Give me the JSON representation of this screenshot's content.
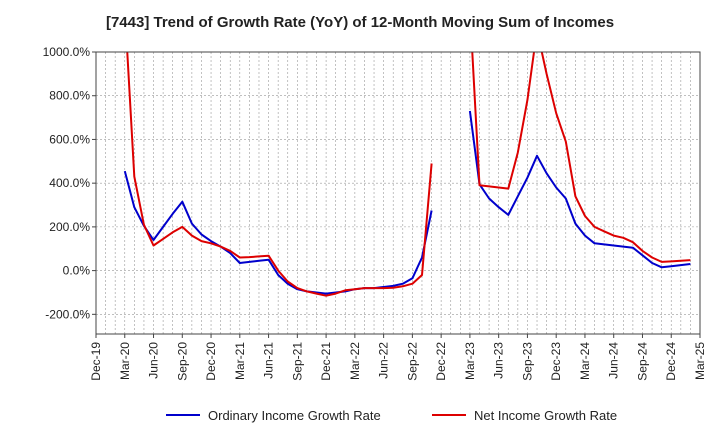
{
  "chart_data": {
    "type": "line",
    "title": "[7443]  Trend of Growth Rate (YoY) of 12-Month Moving Sum of Incomes",
    "xlabel": "",
    "ylabel": "",
    "ylim": [
      -290,
      1000
    ],
    "yticks": [
      -200,
      0,
      200,
      400,
      600,
      800,
      1000
    ],
    "ytick_labels": [
      "-200.0%",
      "0.0%",
      "200.0%",
      "400.0%",
      "600.0%",
      "800.0%",
      "1000.0%"
    ],
    "x_tick_labels": [
      "Dec-19",
      "Mar-20",
      "Jun-20",
      "Sep-20",
      "Dec-20",
      "Mar-21",
      "Jun-21",
      "Sep-21",
      "Dec-21",
      "Mar-22",
      "Jun-22",
      "Sep-22",
      "Dec-22",
      "Mar-23",
      "Jun-23",
      "Sep-23",
      "Dec-23",
      "Mar-24",
      "Jun-24",
      "Sep-24",
      "Dec-24",
      "Mar-25"
    ],
    "x_months": [
      "2019-12",
      "2020-01",
      "2020-02",
      "2020-03",
      "2020-04",
      "2020-05",
      "2020-06",
      "2020-07",
      "2020-08",
      "2020-09",
      "2020-10",
      "2020-11",
      "2020-12",
      "2021-01",
      "2021-02",
      "2021-03",
      "2021-04",
      "2021-05",
      "2021-06",
      "2021-07",
      "2021-08",
      "2021-09",
      "2021-10",
      "2021-11",
      "2021-12",
      "2022-01",
      "2022-02",
      "2022-03",
      "2022-04",
      "2022-05",
      "2022-06",
      "2022-07",
      "2022-08",
      "2022-09",
      "2022-10",
      "2022-11",
      "2022-12",
      "2023-01",
      "2023-02",
      "2023-03",
      "2023-04",
      "2023-05",
      "2023-06",
      "2023-07",
      "2023-08",
      "2023-09",
      "2023-10",
      "2023-11",
      "2023-12",
      "2024-01",
      "2024-02",
      "2024-03",
      "2024-04",
      "2024-05",
      "2024-06",
      "2024-07",
      "2024-08",
      "2024-09",
      "2024-10",
      "2024-11",
      "2024-12",
      "2025-01",
      "2025-02",
      "2025-03"
    ],
    "grid": true,
    "legend_position": "bottom",
    "series": [
      {
        "name": "Ordinary Income Growth Rate",
        "color": "#0000cc",
        "values": [
          null,
          null,
          null,
          455,
          290,
          205,
          140,
          200,
          260,
          315,
          215,
          165,
          135,
          110,
          80,
          35,
          40,
          45,
          50,
          -20,
          -60,
          -85,
          -95,
          -100,
          -105,
          -100,
          -95,
          -85,
          -80,
          -80,
          -75,
          -70,
          -60,
          -35,
          60,
          275,
          null,
          null,
          null,
          730,
          395,
          330,
          290,
          255,
          340,
          425,
          525,
          445,
          380,
          330,
          215,
          160,
          125,
          120,
          115,
          110,
          105,
          70,
          35,
          15,
          20,
          25,
          30,
          null
        ]
      },
      {
        "name": "Net Income Growth Rate",
        "color": "#dd0000",
        "values": [
          null,
          null,
          null,
          1200,
          430,
          210,
          115,
          145,
          175,
          200,
          160,
          135,
          125,
          110,
          90,
          60,
          62,
          65,
          68,
          0,
          -50,
          -80,
          -95,
          -105,
          -115,
          -105,
          -90,
          -85,
          -80,
          -80,
          -80,
          -78,
          -72,
          -60,
          -20,
          490,
          null,
          null,
          null,
          1200,
          390,
          385,
          380,
          375,
          540,
          780,
          1100,
          900,
          720,
          590,
          340,
          250,
          200,
          180,
          160,
          150,
          130,
          90,
          60,
          40,
          42,
          45,
          48,
          null
        ]
      }
    ]
  }
}
